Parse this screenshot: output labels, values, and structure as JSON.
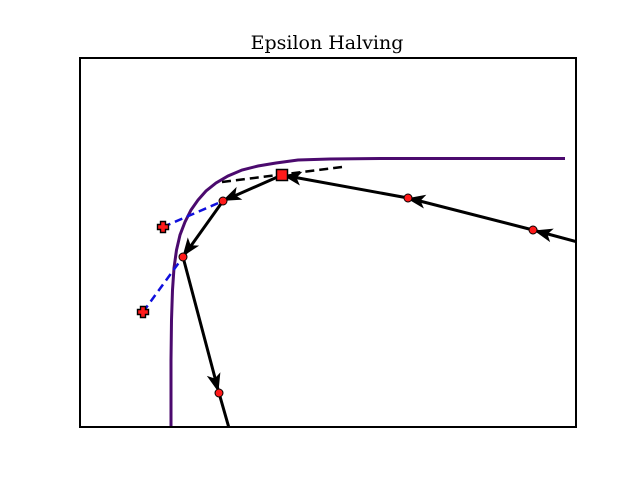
{
  "title": "Epsilon Halving",
  "colors": {
    "iterate_path": "#000000",
    "boundary_curve": "#4b0a6e",
    "tangent_line": "#000000",
    "trial_line": "#1010dd",
    "points": "#ff1a1a"
  },
  "markers": {
    "iterates": "circle",
    "current_iterate": "square",
    "trial_points": "plus"
  }
}
